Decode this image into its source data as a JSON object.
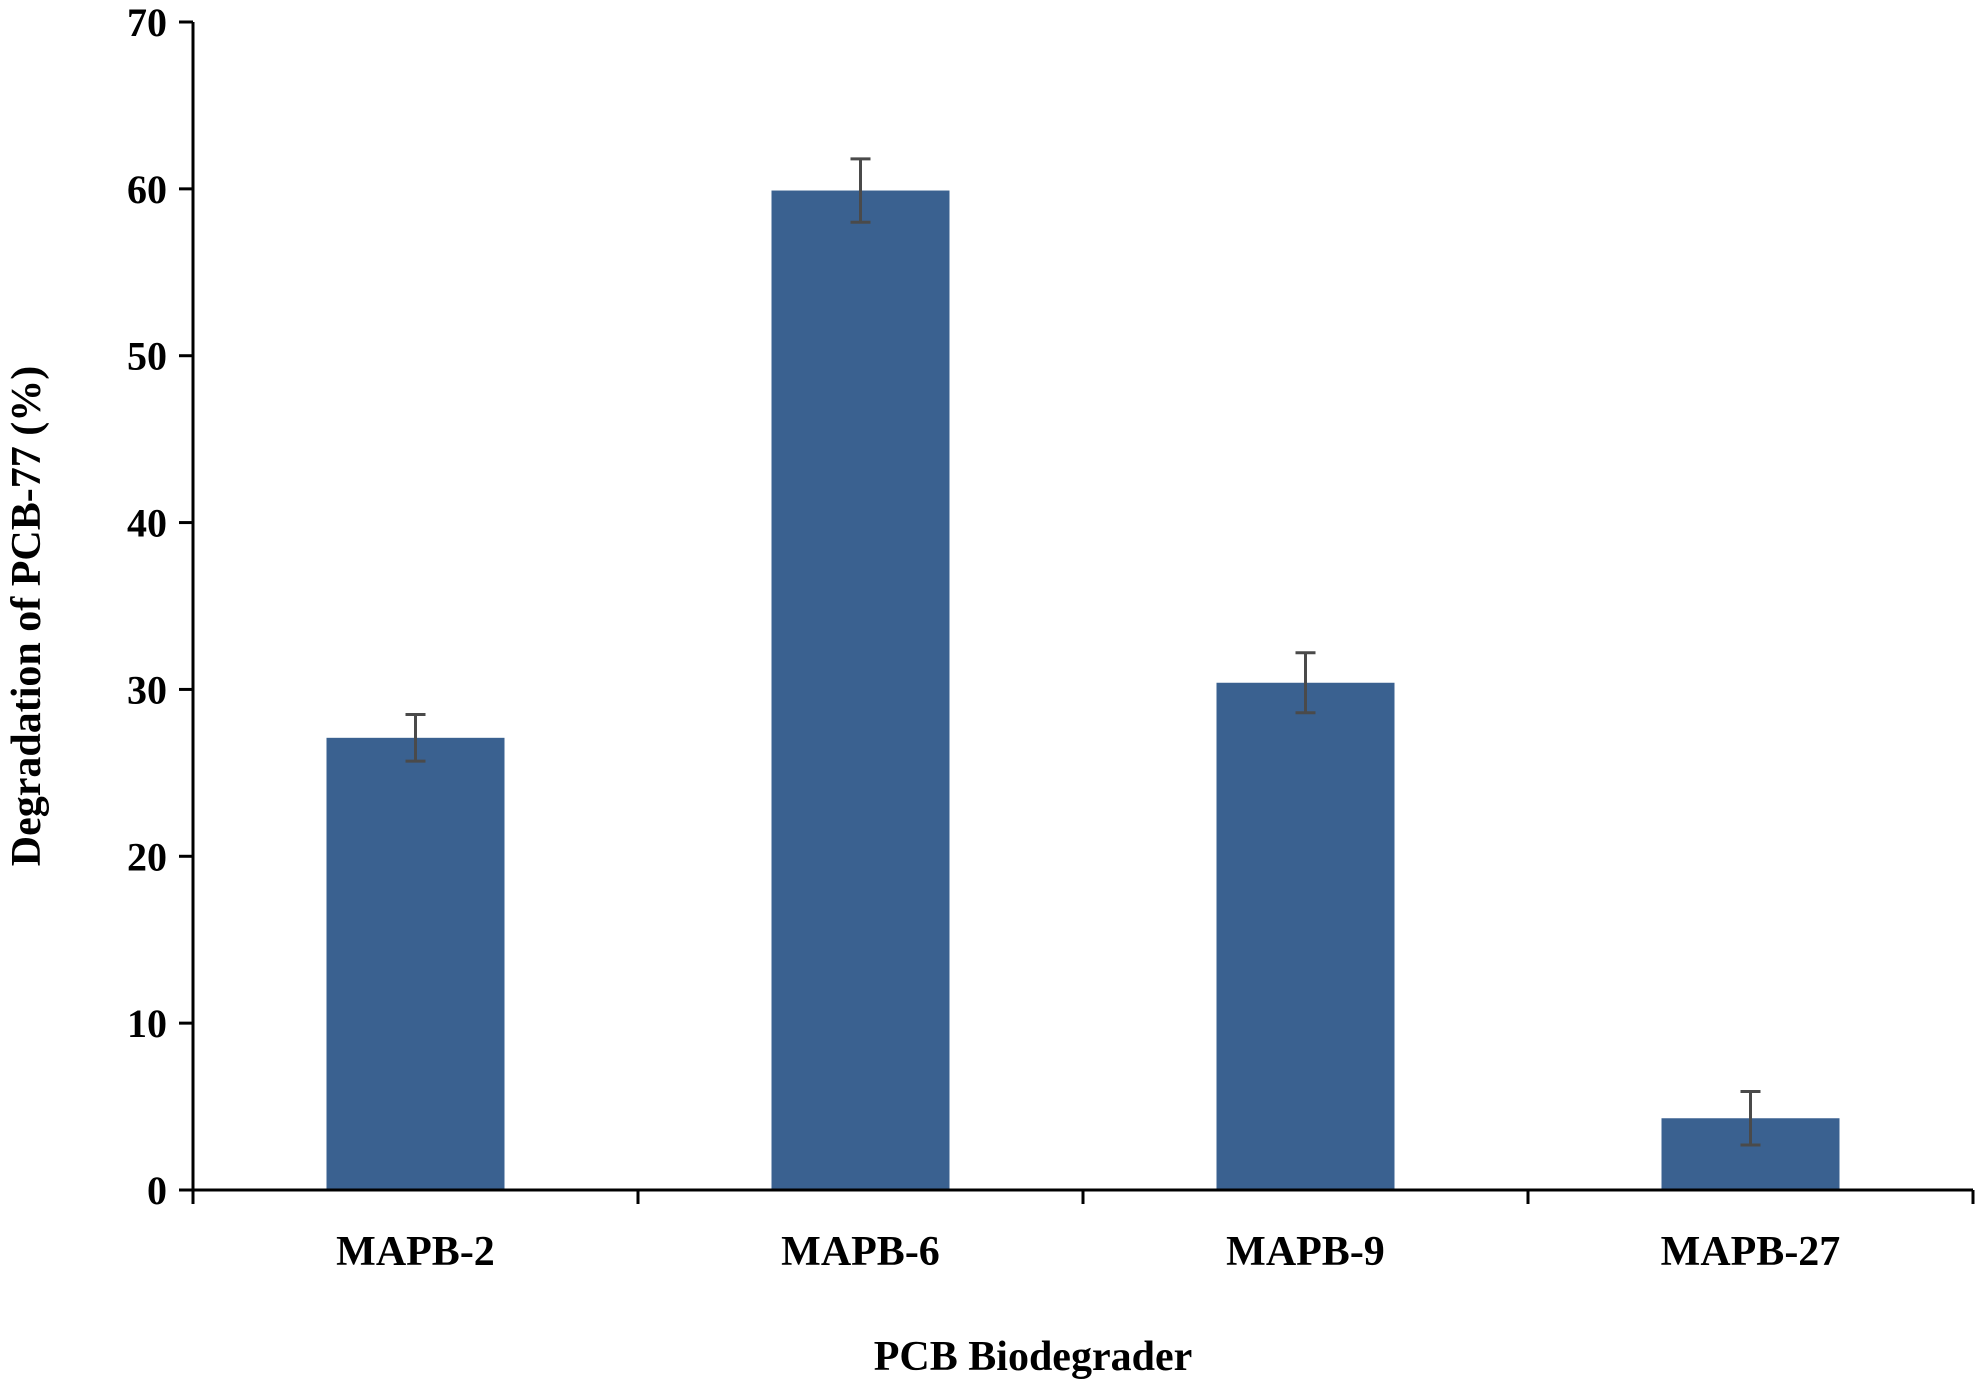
{
  "colors": {
    "bar": "#3a6190",
    "error_bar": "#4a4a4a",
    "axis": "#000000",
    "background": "#ffffff"
  },
  "chart_data": {
    "type": "bar",
    "title": "",
    "xlabel": "PCB Biodegrader",
    "ylabel": "Degradation of PCB-77 (%)",
    "categories": [
      "MAPB-2",
      "MAPB-6",
      "MAPB-9",
      "MAPB-27"
    ],
    "series": [
      {
        "values": [
          27.1,
          59.9,
          30.4,
          4.3
        ],
        "errors": [
          1.4,
          1.9,
          1.8,
          1.6
        ]
      }
    ],
    "ylim": [
      0,
      70
    ],
    "yticks": [
      "0",
      "10",
      "20",
      "30",
      "40",
      "50",
      "60",
      "70"
    ],
    "grid": false,
    "legend": "none"
  }
}
